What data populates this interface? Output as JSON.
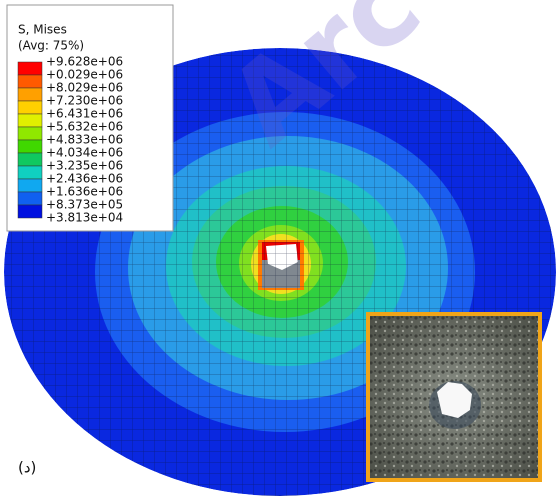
{
  "legend": {
    "title": "S, Mises",
    "subtitle": "(Avg: 75%)",
    "labels": [
      "+9.628e+06",
      "+0.029e+06",
      "+8.029e+06",
      "+7.230e+06",
      "+6.431e+06",
      "+5.632e+06",
      "+4.833e+06",
      "+4.034e+06",
      "+3.235e+06",
      "+2.436e+06",
      "+1.636e+06",
      "+8.373e+05",
      "+3.813e+04"
    ]
  },
  "panel_label": "(د)",
  "watermark": "Arc"
}
